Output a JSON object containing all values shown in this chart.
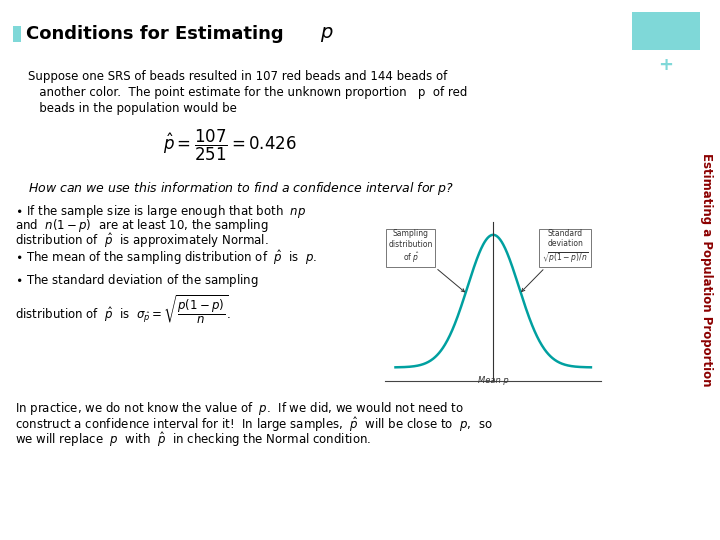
{
  "bg_color": "#ffffff",
  "title_plain": "Conditions for Estimating ",
  "title_italic": "p",
  "title_color": "#000000",
  "title_fontsize": 13,
  "bullet_color": "#7fd8d8",
  "sidebar_text": "Estimating a Population Proportion",
  "sidebar_color": "#8B0000",
  "sidebar_plus": "+",
  "sidebar_plus_color": "#7fd8d8",
  "box_color": "#7fd8d8",
  "bell_color": "#00a0a0",
  "bell_line_color": "#006666",
  "anno_box_color": "#f5f5f5",
  "anno_border_color": "#555555"
}
